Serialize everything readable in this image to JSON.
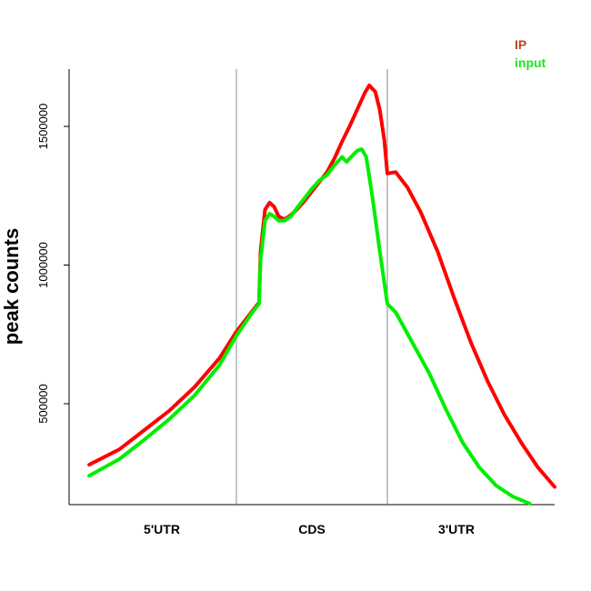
{
  "chart_data": {
    "type": "line",
    "ylabel": "peak counts",
    "regions": [
      "5'UTR",
      "CDS",
      "3'UTR"
    ],
    "yticks": [
      500000,
      1000000,
      1500000
    ],
    "ytick_labels": [
      "500000",
      "1000000",
      "1500000"
    ],
    "ylim": [
      130000,
      1700000
    ],
    "xlim": [
      0,
      3
    ],
    "legend_position": "top-right",
    "series": [
      {
        "name": "IP",
        "color": "#ff0000",
        "legend_color": "#b5471b",
        "points": [
          [
            0.12,
            280000
          ],
          [
            0.3,
            335000
          ],
          [
            0.45,
            405000
          ],
          [
            0.6,
            475000
          ],
          [
            0.75,
            560000
          ],
          [
            0.9,
            665000
          ],
          [
            1.0,
            760000
          ],
          [
            1.1,
            830000
          ],
          [
            1.15,
            865000
          ],
          [
            1.16,
            1050000
          ],
          [
            1.19,
            1200000
          ],
          [
            1.22,
            1225000
          ],
          [
            1.25,
            1210000
          ],
          [
            1.28,
            1175000
          ],
          [
            1.32,
            1165000
          ],
          [
            1.36,
            1180000
          ],
          [
            1.4,
            1200000
          ],
          [
            1.45,
            1230000
          ],
          [
            1.5,
            1265000
          ],
          [
            1.55,
            1300000
          ],
          [
            1.6,
            1335000
          ],
          [
            1.65,
            1385000
          ],
          [
            1.7,
            1445000
          ],
          [
            1.75,
            1500000
          ],
          [
            1.8,
            1560000
          ],
          [
            1.85,
            1620000
          ],
          [
            1.88,
            1648000
          ],
          [
            1.92,
            1625000
          ],
          [
            1.95,
            1560000
          ],
          [
            1.98,
            1450000
          ],
          [
            2.0,
            1330000
          ],
          [
            2.05,
            1335000
          ],
          [
            2.12,
            1280000
          ],
          [
            2.2,
            1190000
          ],
          [
            2.3,
            1050000
          ],
          [
            2.4,
            880000
          ],
          [
            2.5,
            720000
          ],
          [
            2.6,
            580000
          ],
          [
            2.7,
            460000
          ],
          [
            2.8,
            360000
          ],
          [
            2.9,
            270000
          ],
          [
            3.0,
            200000
          ]
        ]
      },
      {
        "name": "input",
        "color": "#00ee00",
        "legend_color": "#1de41d",
        "points": [
          [
            0.12,
            240000
          ],
          [
            0.3,
            300000
          ],
          [
            0.45,
            370000
          ],
          [
            0.6,
            445000
          ],
          [
            0.75,
            530000
          ],
          [
            0.9,
            640000
          ],
          [
            1.0,
            745000
          ],
          [
            1.1,
            825000
          ],
          [
            1.15,
            860000
          ],
          [
            1.16,
            1020000
          ],
          [
            1.19,
            1160000
          ],
          [
            1.22,
            1185000
          ],
          [
            1.25,
            1175000
          ],
          [
            1.28,
            1160000
          ],
          [
            1.32,
            1160000
          ],
          [
            1.36,
            1175000
          ],
          [
            1.4,
            1205000
          ],
          [
            1.45,
            1240000
          ],
          [
            1.5,
            1275000
          ],
          [
            1.55,
            1305000
          ],
          [
            1.6,
            1325000
          ],
          [
            1.65,
            1360000
          ],
          [
            1.7,
            1390000
          ],
          [
            1.73,
            1372000
          ],
          [
            1.76,
            1390000
          ],
          [
            1.8,
            1412000
          ],
          [
            1.83,
            1418000
          ],
          [
            1.86,
            1390000
          ],
          [
            1.9,
            1250000
          ],
          [
            1.95,
            1050000
          ],
          [
            2.0,
            860000
          ],
          [
            2.05,
            830000
          ],
          [
            2.15,
            720000
          ],
          [
            2.25,
            610000
          ],
          [
            2.35,
            480000
          ],
          [
            2.45,
            360000
          ],
          [
            2.55,
            270000
          ],
          [
            2.65,
            205000
          ],
          [
            2.75,
            165000
          ],
          [
            2.85,
            140000
          ]
        ]
      }
    ]
  }
}
